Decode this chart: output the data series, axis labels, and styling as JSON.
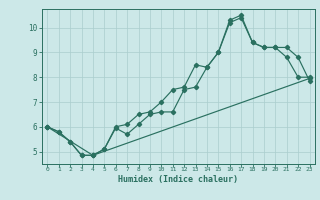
{
  "title": "",
  "xlabel": "Humidex (Indice chaleur)",
  "bg_color": "#cce8e8",
  "grid_color": "#aacece",
  "line_color": "#2a7060",
  "xlim": [
    -0.5,
    23.5
  ],
  "ylim": [
    4.5,
    10.75
  ],
  "xticks": [
    0,
    1,
    2,
    3,
    4,
    5,
    6,
    7,
    8,
    9,
    10,
    11,
    12,
    13,
    14,
    15,
    16,
    17,
    18,
    19,
    20,
    21,
    22,
    23
  ],
  "yticks": [
    5,
    6,
    7,
    8,
    9,
    10
  ],
  "line1_x": [
    0,
    1,
    2,
    3,
    4,
    5,
    6,
    7,
    8,
    9,
    10,
    11,
    12,
    13,
    14,
    15,
    16,
    17,
    18,
    19,
    20,
    21,
    22,
    23
  ],
  "line1_y": [
    6.0,
    5.8,
    5.4,
    4.85,
    4.85,
    5.1,
    5.95,
    5.7,
    6.1,
    6.5,
    6.6,
    6.6,
    7.5,
    7.6,
    8.4,
    9.0,
    10.2,
    10.4,
    9.4,
    9.2,
    9.2,
    9.2,
    8.8,
    7.85
  ],
  "line2_x": [
    0,
    1,
    2,
    3,
    4,
    5,
    6,
    7,
    8,
    9,
    10,
    11,
    12,
    13,
    14,
    15,
    16,
    17,
    18,
    19,
    20,
    21,
    22,
    23
  ],
  "line2_y": [
    6.0,
    5.8,
    5.4,
    4.85,
    4.85,
    5.1,
    6.0,
    6.1,
    6.5,
    6.6,
    7.0,
    7.5,
    7.6,
    8.5,
    8.4,
    9.0,
    10.3,
    10.5,
    9.4,
    9.2,
    9.2,
    8.8,
    8.0,
    8.0
  ],
  "line3_x": [
    0,
    4,
    23
  ],
  "line3_y": [
    6.0,
    4.85,
    7.95
  ]
}
